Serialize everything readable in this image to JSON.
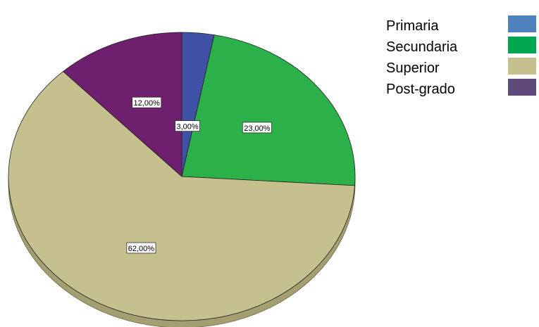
{
  "chart_data": {
    "type": "pie",
    "style": "3d-tilted",
    "categories": [
      "Primaria",
      "Secundaria",
      "Superior",
      "Post-grado"
    ],
    "values": [
      3,
      23,
      62,
      12
    ],
    "value_labels": [
      "3,00%",
      "23,00%",
      "62,00%",
      "12,00%"
    ],
    "colors": [
      "#3f51a5",
      "#2cb04a",
      "#c6bf8e",
      "#6e1f6e"
    ],
    "legend_colors": [
      "#4f81bd",
      "#00a650",
      "#c6bf8e",
      "#604a7b"
    ],
    "side_color": "#a49f70",
    "start": "top",
    "direction": "clockwise",
    "legend_position": "right"
  }
}
